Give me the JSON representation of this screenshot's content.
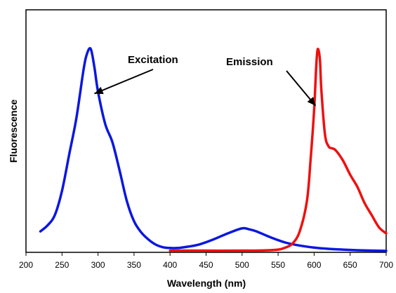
{
  "chart_data": {
    "type": "line",
    "title": "",
    "xlabel": "Wavelength (nm)",
    "ylabel": "Fluorescence",
    "xlim": [
      200,
      700
    ],
    "ylim": [
      0,
      1
    ],
    "xticks": [
      200,
      250,
      300,
      350,
      400,
      450,
      500,
      550,
      600,
      650,
      700
    ],
    "grid": false,
    "legend": "none",
    "series": [
      {
        "color": "#0a17e0",
        "x": [
          220,
          230,
          240,
          250,
          260,
          270,
          280,
          285,
          290,
          295,
          300,
          310,
          320,
          330,
          340,
          350,
          360,
          370,
          380,
          390,
          400,
          410,
          420,
          440,
          460,
          480,
          500,
          510,
          520,
          540,
          560,
          580,
          600,
          620,
          640,
          660,
          680,
          700
        ],
        "y": [
          0.1,
          0.13,
          0.18,
          0.3,
          0.48,
          0.66,
          0.9,
          0.98,
          1.0,
          0.91,
          0.79,
          0.63,
          0.54,
          0.4,
          0.25,
          0.15,
          0.095,
          0.06,
          0.035,
          0.022,
          0.018,
          0.018,
          0.022,
          0.035,
          0.06,
          0.09,
          0.115,
          0.11,
          0.1,
          0.07,
          0.045,
          0.03,
          0.02,
          0.014,
          0.01,
          0.007,
          0.005,
          0.004
        ]
      },
      {
        "color": "#ee1010",
        "x": [
          400,
          450,
          500,
          530,
          550,
          560,
          570,
          580,
          590,
          595,
          600,
          603,
          605,
          608,
          610,
          615,
          620,
          625,
          630,
          640,
          650,
          660,
          670,
          680,
          690,
          700
        ],
        "y": [
          0.005,
          0.005,
          0.005,
          0.006,
          0.01,
          0.02,
          0.04,
          0.1,
          0.25,
          0.45,
          0.7,
          0.92,
          1.0,
          0.95,
          0.8,
          0.58,
          0.52,
          0.51,
          0.5,
          0.45,
          0.38,
          0.32,
          0.24,
          0.18,
          0.12,
          0.09
        ]
      }
    ],
    "annotations": [
      {
        "text": "Excitation",
        "target": [
          295,
          0.78
        ]
      },
      {
        "text": "Emission",
        "target": [
          602,
          0.72
        ]
      }
    ]
  }
}
